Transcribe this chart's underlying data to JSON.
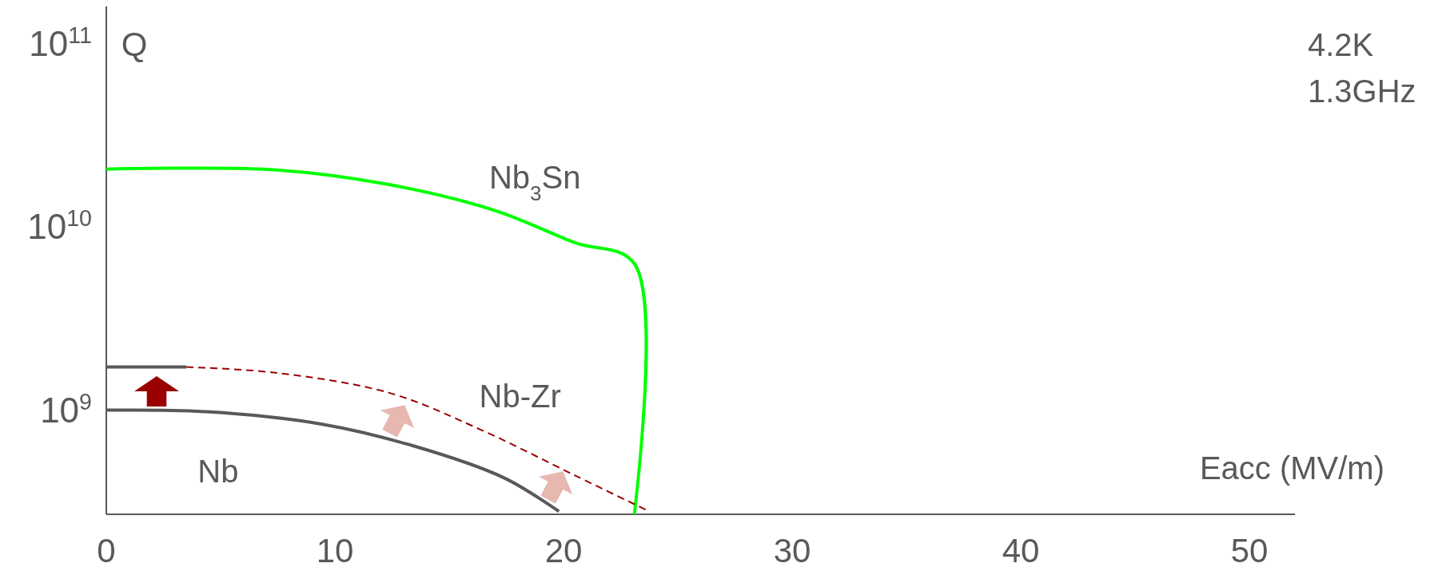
{
  "chart_data": {
    "type": "line",
    "xlabel": "Eacc (MV/m)",
    "ylabel": "Q",
    "log": "y",
    "xlim": [
      0,
      52
    ],
    "xticks": [
      0,
      10,
      20,
      30,
      40,
      50
    ],
    "ylim": [
      270000000,
      160000000000
    ],
    "yticks": [
      {
        "value": 1000000000,
        "label": "10$^{9}$"
      },
      {
        "value": 10000000000,
        "label": "10$^{10}$"
      },
      {
        "value": 100000000000,
        "label": "10$^{11}$"
      }
    ],
    "series": [
      {
        "name": "Nb$_{3}$Sn",
        "color": "#00ff00",
        "line_style": "solid",
        "x": [
          0,
          7.4,
          12.4,
          17,
          20.5,
          23.1,
          23.1
        ],
        "values": [
          20700000000,
          20500000000,
          17000000000,
          12300000000,
          8200000000,
          6300000000,
          270000000
        ]
      },
      {
        "name": "Nb",
        "color": "#595959",
        "line_style": "solid",
        "x": [
          0,
          4.4,
          9.4,
          13.4,
          17.4,
          19.8
        ],
        "values": [
          1000000000,
          980000000,
          840000000,
          640000000,
          427000000,
          280000000
        ]
      },
      {
        "name": "Nb-Zr",
        "color": "#990000",
        "line_style": "dashed",
        "x": [
          3.5,
          7.4,
          12.4,
          16.4,
          20.5,
          23.6
        ],
        "values": [
          1720000000,
          1600000000,
          1240000000,
          780000000,
          440000000,
          286000000
        ]
      },
      {
        "color": "#595959",
        "line_style": "solid",
        "x": [
          0,
          3.5
        ],
        "values": [
          1720000000,
          1720000000
        ]
      }
    ],
    "annotations": [
      "4.2K",
      "1.3GHz"
    ]
  }
}
